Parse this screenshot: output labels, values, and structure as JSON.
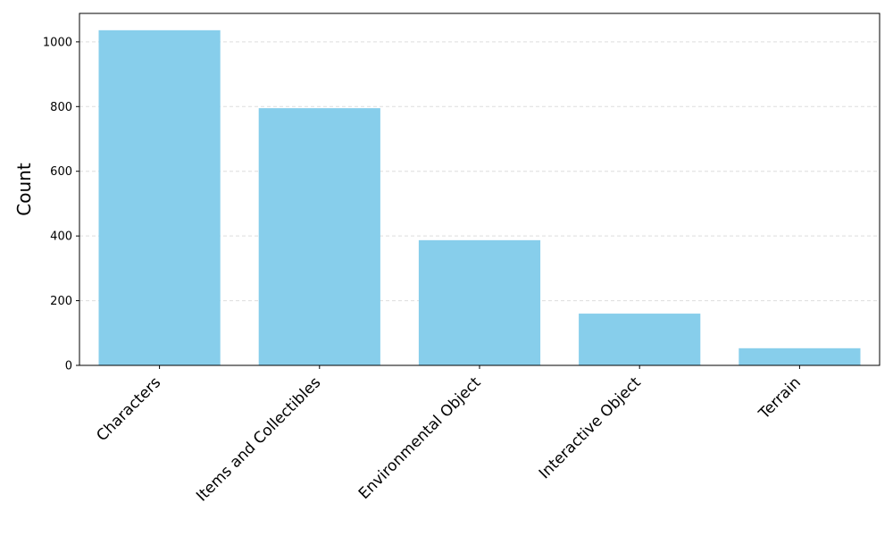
{
  "chart_data": {
    "type": "bar",
    "y_label": "Count",
    "categories": [
      "Characters",
      "Items and Collectibles",
      "Environmental Object",
      "Interactive Object",
      "Terrain"
    ],
    "values": [
      1036,
      795,
      387,
      160,
      53
    ],
    "color": "#87ceeb",
    "ylim": [
      0,
      1088
    ],
    "yticks": [
      0,
      200,
      400,
      600,
      800,
      1000
    ],
    "grid": true
  }
}
